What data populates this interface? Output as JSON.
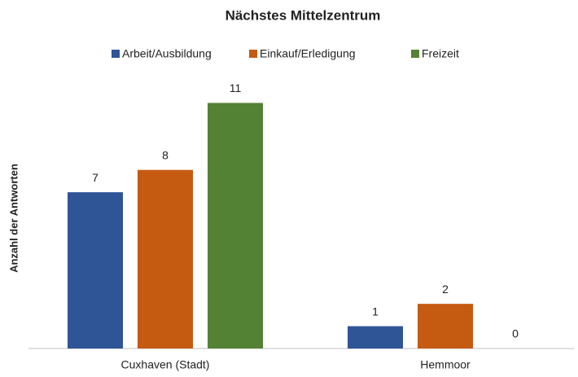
{
  "chart_data": {
    "type": "bar",
    "title": "Nächstes Mittelzentrum",
    "y_label": "Anzahl der Antworten",
    "categories": [
      "Cuxhaven (Stadt)",
      "Hemmoor"
    ],
    "series": [
      {
        "name": "Arbeit/Ausbildung",
        "color": "#2f5597",
        "values": [
          7,
          1
        ]
      },
      {
        "name": "Einkauf/Erledigung",
        "color": "#c55a11",
        "values": [
          8,
          2
        ]
      },
      {
        "name": "Freizeit",
        "color": "#548235",
        "values": [
          11,
          0
        ]
      }
    ],
    "ylim": [
      0,
      12
    ],
    "legend": "top"
  }
}
